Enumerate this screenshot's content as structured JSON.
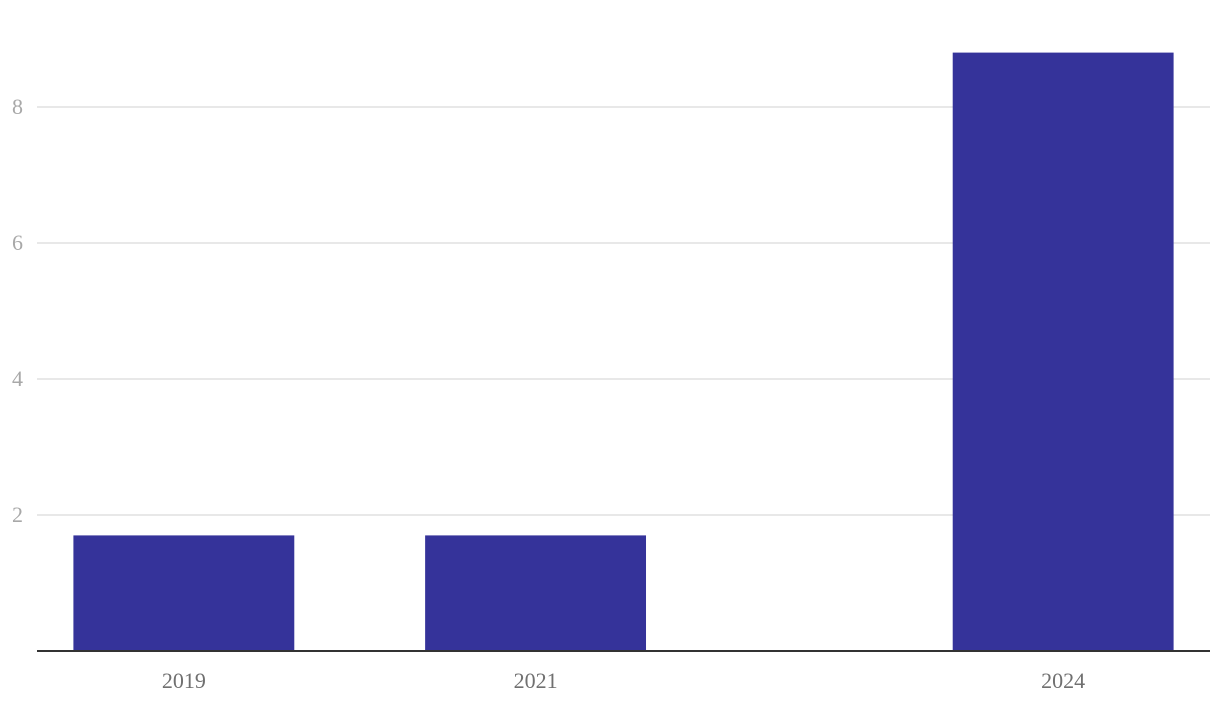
{
  "chart_data": {
    "type": "bar",
    "x": [
      2019,
      2021,
      2024
    ],
    "values": [
      1.7,
      1.7,
      8.8
    ],
    "color": "#35339a",
    "xlim": [
      2018.165,
      2024.835
    ],
    "xticks": [
      2019,
      2021,
      2024
    ],
    "ylim": [
      0,
      9.5
    ],
    "yticks": [
      2,
      4,
      6,
      8
    ],
    "grid": true
  }
}
